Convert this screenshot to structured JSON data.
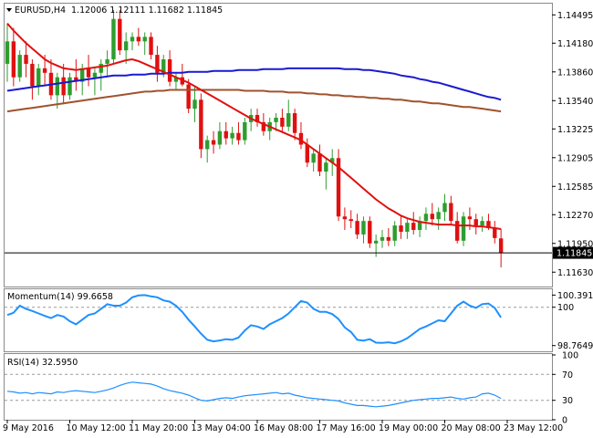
{
  "chart_data": [
    {
      "type": "candlestick",
      "title": "EURUSD,H4",
      "ohlc_label": "1.12006 1.12111 1.11682 1.11845",
      "last_price": 1.11845,
      "last_price_label": "1.11845",
      "ylim": [
        1.1147,
        1.1462
      ],
      "y_ticks": [
        1.1163,
        1.1195,
        1.1227,
        1.12585,
        1.12905,
        1.13225,
        1.1354,
        1.1386,
        1.1418,
        1.14495
      ],
      "y_tick_labels": [
        "1.11630",
        "1.11950",
        "1.12270",
        "1.12585",
        "1.12905",
        "1.13225",
        "1.13540",
        "1.13860",
        "1.14180",
        "1.14495"
      ],
      "x_labels": [
        "9 May 2016",
        "10 May 12:00",
        "11 May 20:00",
        "13 May 04:00",
        "16 May 08:00",
        "17 May 16:00",
        "19 May 00:00",
        "20 May 08:00",
        "23 May 12:00"
      ],
      "x_label_bars": [
        0,
        10,
        20,
        30,
        40,
        50,
        60,
        70,
        80
      ],
      "colors": {
        "up": "#2e9d2e",
        "down": "#e01010",
        "ma_fast": "#e01010",
        "ma_slow": "#1a1ad0",
        "ma_long": "#a0522d"
      },
      "candles": [
        [
          1.1395,
          1.144,
          1.1375,
          1.142
        ],
        [
          1.142,
          1.1435,
          1.137,
          1.138
        ],
        [
          1.138,
          1.141,
          1.1375,
          1.1405
        ],
        [
          1.1405,
          1.142,
          1.138,
          1.1395
        ],
        [
          1.1395,
          1.14,
          1.1355,
          1.137
        ],
        [
          1.137,
          1.1395,
          1.136,
          1.139
        ],
        [
          1.139,
          1.1405,
          1.137,
          1.1385
        ],
        [
          1.1385,
          1.14,
          1.1355,
          1.136
        ],
        [
          1.136,
          1.1385,
          1.1345,
          1.138
        ],
        [
          1.138,
          1.1395,
          1.135,
          1.136
        ],
        [
          1.136,
          1.1385,
          1.1355,
          1.138
        ],
        [
          1.138,
          1.14,
          1.1365,
          1.1375
        ],
        [
          1.1375,
          1.1395,
          1.136,
          1.139
        ],
        [
          1.139,
          1.1405,
          1.137,
          1.138
        ],
        [
          1.138,
          1.139,
          1.136,
          1.1385
        ],
        [
          1.1385,
          1.14,
          1.1365,
          1.1395
        ],
        [
          1.1395,
          1.141,
          1.138,
          1.14
        ],
        [
          1.14,
          1.1455,
          1.1395,
          1.1445
        ],
        [
          1.1445,
          1.1455,
          1.1405,
          1.141
        ],
        [
          1.141,
          1.143,
          1.1395,
          1.142
        ],
        [
          1.142,
          1.143,
          1.141,
          1.1425
        ],
        [
          1.1425,
          1.1435,
          1.1415,
          1.142
        ],
        [
          1.142,
          1.143,
          1.1405,
          1.1425
        ],
        [
          1.1425,
          1.143,
          1.14,
          1.1405
        ],
        [
          1.1405,
          1.1415,
          1.1375,
          1.1385
        ],
        [
          1.1385,
          1.1405,
          1.138,
          1.14
        ],
        [
          1.14,
          1.141,
          1.137,
          1.1375
        ],
        [
          1.1375,
          1.1385,
          1.1365,
          1.138
        ],
        [
          1.138,
          1.1395,
          1.137,
          1.1372
        ],
        [
          1.1372,
          1.1378,
          1.134,
          1.1345
        ],
        [
          1.1345,
          1.137,
          1.133,
          1.1355
        ],
        [
          1.1355,
          1.1362,
          1.129,
          1.13
        ],
        [
          1.13,
          1.1315,
          1.1285,
          1.131
        ],
        [
          1.131,
          1.132,
          1.1295,
          1.1305
        ],
        [
          1.1305,
          1.133,
          1.13,
          1.132
        ],
        [
          1.132,
          1.133,
          1.1305,
          1.1312
        ],
        [
          1.1312,
          1.1325,
          1.1305,
          1.1318
        ],
        [
          1.1318,
          1.133,
          1.1305,
          1.131
        ],
        [
          1.131,
          1.1335,
          1.1305,
          1.133
        ],
        [
          1.133,
          1.1345,
          1.132,
          1.1338
        ],
        [
          1.1338,
          1.1345,
          1.1325,
          1.133
        ],
        [
          1.133,
          1.134,
          1.1315,
          1.132
        ],
        [
          1.132,
          1.1335,
          1.131,
          1.133
        ],
        [
          1.133,
          1.134,
          1.132,
          1.1335
        ],
        [
          1.1335,
          1.1345,
          1.132,
          1.1325
        ],
        [
          1.1325,
          1.1355,
          1.132,
          1.134
        ],
        [
          1.134,
          1.1345,
          1.131,
          1.1318
        ],
        [
          1.1318,
          1.133,
          1.13,
          1.1305
        ],
        [
          1.1305,
          1.1312,
          1.128,
          1.1285
        ],
        [
          1.1285,
          1.13,
          1.1275,
          1.1295
        ],
        [
          1.1295,
          1.1305,
          1.127,
          1.1275
        ],
        [
          1.1275,
          1.129,
          1.1255,
          1.1285
        ],
        [
          1.1285,
          1.13,
          1.127,
          1.129
        ],
        [
          1.129,
          1.13,
          1.122,
          1.1225
        ],
        [
          1.1225,
          1.1235,
          1.121,
          1.1222
        ],
        [
          1.1222,
          1.1232,
          1.1212,
          1.122
        ],
        [
          1.122,
          1.1228,
          1.12,
          1.1205
        ],
        [
          1.1205,
          1.1225,
          1.1195,
          1.122
        ],
        [
          1.122,
          1.1225,
          1.119,
          1.1195
        ],
        [
          1.1195,
          1.1205,
          1.118,
          1.1198
        ],
        [
          1.1198,
          1.121,
          1.119,
          1.1202
        ],
        [
          1.1202,
          1.1212,
          1.1192,
          1.1198
        ],
        [
          1.1198,
          1.122,
          1.1192,
          1.1215
        ],
        [
          1.1215,
          1.1225,
          1.12,
          1.1208
        ],
        [
          1.1208,
          1.1222,
          1.12,
          1.1218
        ],
        [
          1.1218,
          1.123,
          1.1205,
          1.121
        ],
        [
          1.121,
          1.1225,
          1.1202,
          1.122
        ],
        [
          1.122,
          1.1235,
          1.121,
          1.1228
        ],
        [
          1.1228,
          1.124,
          1.1215,
          1.1222
        ],
        [
          1.1222,
          1.1235,
          1.121,
          1.123
        ],
        [
          1.123,
          1.125,
          1.122,
          1.124
        ],
        [
          1.124,
          1.1248,
          1.1215,
          1.122
        ],
        [
          1.122,
          1.123,
          1.1195,
          1.1198
        ],
        [
          1.1198,
          1.123,
          1.1192,
          1.1225
        ],
        [
          1.1225,
          1.1235,
          1.121,
          1.1222
        ],
        [
          1.1222,
          1.1228,
          1.1205,
          1.1215
        ],
        [
          1.1215,
          1.1225,
          1.1208,
          1.122
        ],
        [
          1.122,
          1.1228,
          1.121,
          1.1212
        ],
        [
          1.1212,
          1.122,
          1.1195,
          1.1201
        ],
        [
          1.12006,
          1.12111,
          1.11682,
          1.11845
        ]
      ],
      "ma_fast": [
        1.144,
        1.1432,
        1.1425,
        1.1418,
        1.1412,
        1.1406,
        1.14,
        1.1396,
        1.1393,
        1.139,
        1.1389,
        1.1388,
        1.1389,
        1.139,
        1.1391,
        1.1392,
        1.1393,
        1.1395,
        1.1397,
        1.1399,
        1.14,
        1.1398,
        1.1395,
        1.1392,
        1.1389,
        1.1386,
        1.1383,
        1.138,
        1.1377,
        1.1374,
        1.137,
        1.1366,
        1.1362,
        1.1358,
        1.1354,
        1.135,
        1.1346,
        1.1342,
        1.1338,
        1.1334,
        1.1331,
        1.1328,
        1.1325,
        1.1322,
        1.1319,
        1.1316,
        1.1313,
        1.131,
        1.1305,
        1.13,
        1.1295,
        1.129,
        1.1285,
        1.128,
        1.1274,
        1.1268,
        1.1262,
        1.1256,
        1.125,
        1.1244,
        1.1239,
        1.1234,
        1.123,
        1.1226,
        1.1223,
        1.1221,
        1.1219,
        1.1218,
        1.1217,
        1.1216,
        1.1216,
        1.1216,
        1.1215,
        1.1215,
        1.1215,
        1.1214,
        1.1214,
        1.1213,
        1.1212,
        1.1211
      ],
      "ma_slow": [
        1.1365,
        1.1366,
        1.1367,
        1.1368,
        1.1369,
        1.137,
        1.1371,
        1.1372,
        1.1373,
        1.1374,
        1.1375,
        1.1376,
        1.1377,
        1.1378,
        1.1379,
        1.138,
        1.1381,
        1.1382,
        1.1382,
        1.1382,
        1.1383,
        1.1383,
        1.1383,
        1.1384,
        1.1384,
        1.1384,
        1.1385,
        1.1385,
        1.1385,
        1.1386,
        1.1386,
        1.1386,
        1.1386,
        1.1387,
        1.1387,
        1.1387,
        1.1387,
        1.1388,
        1.1388,
        1.1388,
        1.1388,
        1.1389,
        1.1389,
        1.1389,
        1.1389,
        1.139,
        1.139,
        1.139,
        1.139,
        1.139,
        1.139,
        1.139,
        1.139,
        1.139,
        1.1389,
        1.1389,
        1.1389,
        1.1388,
        1.1388,
        1.1387,
        1.1386,
        1.1385,
        1.1384,
        1.1382,
        1.1381,
        1.138,
        1.1378,
        1.1377,
        1.1375,
        1.1374,
        1.1372,
        1.137,
        1.1368,
        1.1366,
        1.1364,
        1.1362,
        1.136,
        1.1358,
        1.1357,
        1.1355
      ],
      "ma_long": [
        1.1342,
        1.1343,
        1.1344,
        1.1345,
        1.1346,
        1.1347,
        1.1348,
        1.1349,
        1.135,
        1.1351,
        1.1352,
        1.1353,
        1.1354,
        1.1355,
        1.1356,
        1.1357,
        1.1358,
        1.1359,
        1.136,
        1.1361,
        1.1362,
        1.1363,
        1.1364,
        1.1364,
        1.1365,
        1.1365,
        1.1366,
        1.1366,
        1.1366,
        1.1366,
        1.1366,
        1.1366,
        1.1366,
        1.1366,
        1.1366,
        1.1366,
        1.1366,
        1.1366,
        1.1365,
        1.1365,
        1.1365,
        1.1365,
        1.1364,
        1.1364,
        1.1364,
        1.1363,
        1.1363,
        1.1363,
        1.1362,
        1.1362,
        1.1361,
        1.1361,
        1.136,
        1.136,
        1.1359,
        1.1359,
        1.1358,
        1.1358,
        1.1357,
        1.1357,
        1.1356,
        1.1356,
        1.1355,
        1.1355,
        1.1354,
        1.1353,
        1.1353,
        1.1352,
        1.1351,
        1.1351,
        1.135,
        1.1349,
        1.1348,
        1.1347,
        1.1347,
        1.1346,
        1.1345,
        1.1344,
        1.1343,
        1.1342
      ]
    },
    {
      "type": "line",
      "title": "Momentum(14) 99.6658",
      "ylim": [
        98.58,
        100.55
      ],
      "y_ticks": [
        100.3918,
        100,
        98.7649
      ],
      "y_tick_labels": [
        "100.3918",
        "100",
        "98.7649"
      ],
      "reference_line": 100,
      "color": "#1e90ff",
      "values": [
        99.75,
        99.82,
        100.05,
        99.95,
        99.88,
        99.8,
        99.72,
        99.65,
        99.75,
        99.7,
        99.55,
        99.45,
        99.6,
        99.75,
        99.8,
        99.95,
        100.1,
        100.05,
        100.05,
        100.15,
        100.32,
        100.38,
        100.39,
        100.35,
        100.32,
        100.22,
        100.18,
        100.05,
        99.85,
        99.6,
        99.38,
        99.15,
        98.95,
        98.9,
        98.93,
        98.97,
        98.95,
        99.02,
        99.25,
        99.42,
        99.38,
        99.3,
        99.45,
        99.55,
        99.65,
        99.8,
        100.0,
        100.2,
        100.15,
        99.95,
        99.85,
        99.85,
        99.78,
        99.62,
        99.35,
        99.2,
        98.95,
        98.92,
        98.97,
        98.86,
        98.85,
        98.87,
        98.84,
        98.9,
        99.0,
        99.15,
        99.3,
        99.38,
        99.48,
        99.58,
        99.55,
        99.8,
        100.05,
        100.18,
        100.05,
        99.98,
        100.1,
        100.12,
        99.98,
        99.67
      ]
    },
    {
      "type": "line",
      "title": "RSI(14) 32.5950",
      "ylim": [
        0,
        100
      ],
      "y_ticks": [
        100,
        70,
        30,
        0
      ],
      "y_tick_labels": [
        "100",
        "70",
        "30",
        "0"
      ],
      "reference_lines": [
        70,
        30
      ],
      "color": "#1e90ff",
      "values": [
        44,
        43,
        41,
        42,
        40,
        42,
        41,
        40,
        43,
        42,
        44,
        45,
        44,
        43,
        42,
        44,
        46,
        49,
        53,
        56,
        58,
        57,
        56,
        55,
        52,
        48,
        45,
        43,
        41,
        38,
        34,
        30,
        29,
        31,
        33,
        34,
        33,
        35,
        37,
        38,
        39,
        40,
        41,
        42,
        40,
        41,
        38,
        36,
        34,
        33,
        32,
        31,
        30,
        29,
        26,
        24,
        22,
        22,
        21,
        20,
        21,
        22,
        24,
        26,
        28,
        30,
        31,
        32,
        33,
        33,
        34,
        35,
        33,
        32,
        34,
        35,
        40,
        41,
        38,
        33
      ]
    }
  ]
}
